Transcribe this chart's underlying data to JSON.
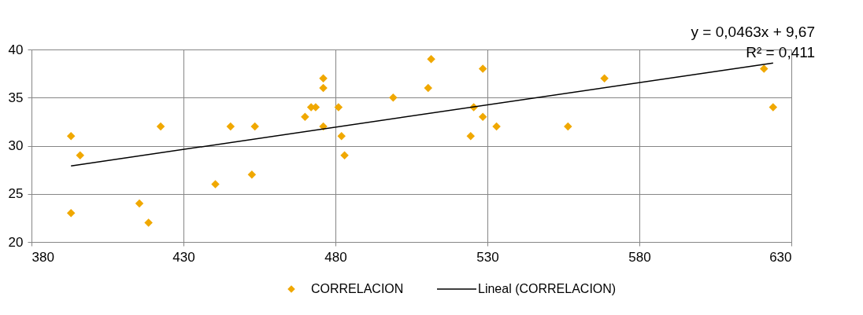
{
  "chart_data": {
    "type": "scatter",
    "xlim": [
      380,
      630
    ],
    "xticks": [
      380,
      430,
      480,
      530,
      580,
      630
    ],
    "ylim": [
      20,
      40
    ],
    "yticks": [
      20,
      25,
      30,
      35,
      40
    ],
    "grid": true,
    "legend": "bottom",
    "marker": "diamond",
    "annotations": [
      "y = 0,0463x + 9,67",
      "R² = 0,411"
    ],
    "series": [
      {
        "name": "CORRELACION",
        "color": "#f0a800",
        "x": [
          393,
          393,
          396,
          415.5,
          418.5,
          422.5,
          440.5,
          445.5,
          452.5,
          453.5,
          470,
          472,
          473.5,
          476,
          476,
          476,
          481,
          482,
          483,
          499,
          510.5,
          511.5,
          524.5,
          525.5,
          528.5,
          528.5,
          533,
          556.5,
          568.5,
          621,
          624
        ],
        "values": [
          31,
          23,
          29,
          24,
          22,
          32,
          26,
          32,
          27,
          32,
          33,
          34,
          34,
          37,
          36,
          32,
          34,
          31,
          29,
          35,
          36,
          39,
          31,
          34,
          33,
          38,
          32,
          32,
          37,
          38,
          34
        ]
      },
      {
        "name": "Lineal (CORRELACION)",
        "color": "#000000",
        "type": "line",
        "marker": "none",
        "line_style": "solid",
        "x": [
          393,
          624
        ],
        "values": [
          27.9,
          38.6
        ]
      }
    ]
  }
}
